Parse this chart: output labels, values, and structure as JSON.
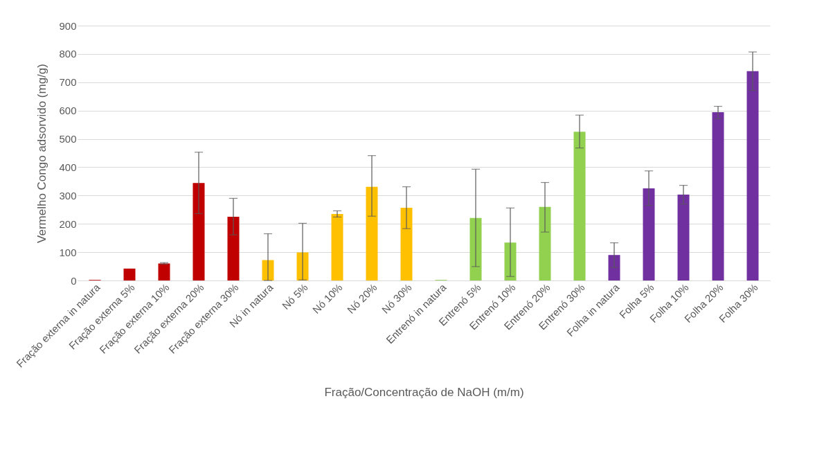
{
  "chart_data": {
    "type": "bar",
    "xlabel": "Fração/Concentração de NaOH (m/m)",
    "ylabel": "Vermelho Congo adsorvido (mg/g)",
    "categories": [
      "Fração externa in natura",
      "Fração externa 5%",
      "Fração externa 10%",
      "Fração externa 20%",
      "Fração externa 30%",
      "Nó in natura",
      "Nó 5%",
      "Nó 10%",
      "Nó 20%",
      "Nó 30%",
      "Entrenó in natura",
      "Entrenó 5%",
      "Entrenó 10%",
      "Entrenó 20%",
      "Entrenó 30%",
      "Folha in natura",
      "Folha 5%",
      "Folha 10%",
      "Folha 20%",
      "Folha 30%"
    ],
    "values": [
      2,
      42,
      60,
      344,
      225,
      72,
      99,
      235,
      331,
      257,
      2,
      221,
      134,
      260,
      525,
      90,
      325,
      303,
      594,
      739
    ],
    "errors": [
      null,
      null,
      [
        58,
        63
      ],
      [
        236,
        453
      ],
      [
        161,
        290
      ],
      [
        0,
        165
      ],
      [
        2,
        202
      ],
      [
        224,
        246
      ],
      [
        227,
        441
      ],
      [
        183,
        331
      ],
      null,
      [
        49,
        393
      ],
      [
        14,
        256
      ],
      [
        171,
        346
      ],
      [
        468,
        584
      ],
      [
        46,
        133
      ],
      [
        265,
        387
      ],
      [
        270,
        336
      ],
      [
        571,
        615
      ],
      [
        671,
        807
      ]
    ],
    "colors": [
      "#c00000",
      "#c00000",
      "#c00000",
      "#c00000",
      "#c00000",
      "#ffc000",
      "#ffc000",
      "#ffc000",
      "#ffc000",
      "#ffc000",
      "#92d050",
      "#92d050",
      "#92d050",
      "#92d050",
      "#92d050",
      "#7030a0",
      "#7030a0",
      "#7030a0",
      "#7030a0",
      "#7030a0"
    ],
    "ylim": [
      0,
      900
    ],
    "yticks": [
      0,
      100,
      200,
      300,
      400,
      500,
      600,
      700,
      800,
      900
    ],
    "grid": "y"
  }
}
